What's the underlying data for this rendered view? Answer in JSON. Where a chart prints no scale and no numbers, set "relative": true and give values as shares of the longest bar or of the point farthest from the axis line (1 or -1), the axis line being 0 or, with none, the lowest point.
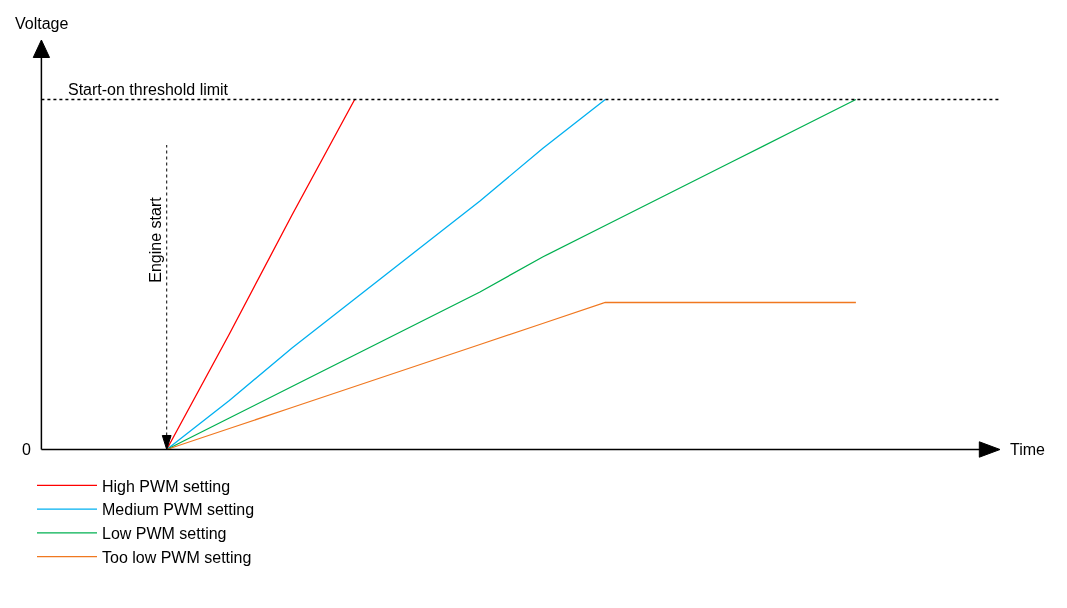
{
  "chart_data": {
    "type": "line",
    "relative": true,
    "xlabel": "Time",
    "ylabel": "Voltage",
    "categories": [
      null,
      null,
      null,
      null,
      null,
      null,
      null,
      null,
      null,
      null,
      null,
      null,
      null,
      null,
      null,
      null
    ],
    "series": [
      {
        "name": "High PWM setting",
        "color": "#ff0000",
        "values": [
          null,
          null,
          0,
          0.33,
          0.67,
          1,
          null,
          null,
          null,
          null,
          null,
          null,
          null,
          null,
          null,
          null
        ]
      },
      {
        "name": "Medium PWM setting",
        "color": "#00b0f0",
        "values": [
          null,
          null,
          0,
          0.14,
          0.29,
          0.43,
          0.57,
          0.71,
          0.86,
          1,
          null,
          null,
          null,
          null,
          null,
          null
        ]
      },
      {
        "name": "Low PWM setting",
        "color": "#00b050",
        "values": [
          null,
          null,
          0,
          0.09,
          0.18,
          0.27,
          0.36,
          0.45,
          0.55,
          0.64,
          0.73,
          0.82,
          0.91,
          1,
          null,
          null
        ]
      },
      {
        "name": "Too low PWM setting",
        "color": "#f07820",
        "values": [
          null,
          null,
          0,
          0.06,
          0.12,
          0.18,
          0.24,
          0.3,
          0.36,
          0.42,
          0.42,
          0.42,
          0.42,
          0.42,
          null,
          null
        ]
      }
    ],
    "ref_lines": [
      {
        "axis": "y",
        "value": 1,
        "label": "Start-on threshold limit",
        "line_style": "dotted",
        "color": "#000000"
      }
    ],
    "annotations": [
      "0",
      "Engine start"
    ],
    "legend": "bottom left",
    "marker": "none",
    "line_style": "solid"
  }
}
